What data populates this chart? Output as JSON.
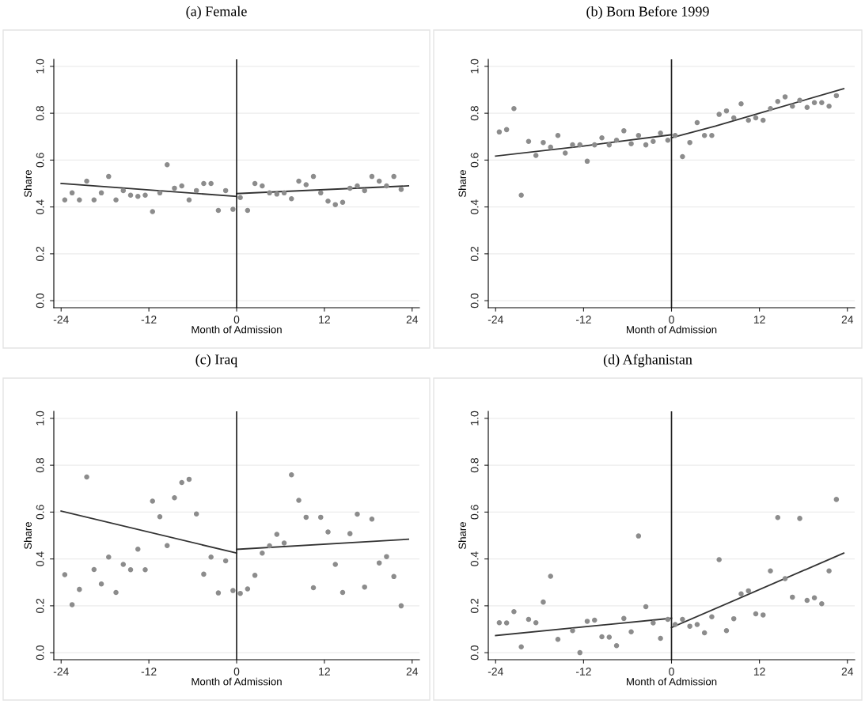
{
  "chart_data": [
    {
      "type": "scatter",
      "title": "(a) Female",
      "xlabel": "Month of Admission",
      "ylabel": "Share",
      "xlim": [
        -25,
        25
      ],
      "ylim": [
        -0.03,
        1.03
      ],
      "xticks": [
        -24,
        -12,
        0,
        12,
        24
      ],
      "yticks": [
        {
          "value": 0,
          "label": "0.0"
        },
        {
          "value": 0.2,
          "label": "0.2"
        },
        {
          "value": 0.4,
          "label": "0.4"
        },
        {
          "value": 0.6,
          "label": "0.6"
        },
        {
          "value": 0.8,
          "label": "0.8"
        },
        {
          "value": 1,
          "label": "1.0"
        }
      ],
      "grid": "y",
      "marker": "circle",
      "ref_lines": [
        {
          "axis": "x",
          "value": 0,
          "color": "#222222"
        }
      ],
      "x": [
        -23.5,
        -22.5,
        -21.5,
        -20.5,
        -19.5,
        -18.5,
        -17.5,
        -16.5,
        -15.5,
        -14.5,
        -13.5,
        -12.5,
        -11.5,
        -10.5,
        -9.5,
        -8.5,
        -7.5,
        -6.5,
        -5.5,
        -4.5,
        -3.5,
        -2.5,
        -1.5,
        -0.5,
        0.5,
        1.5,
        2.5,
        3.5,
        4.5,
        5.5,
        6.5,
        7.5,
        8.5,
        9.5,
        10.5,
        11.5,
        12.5,
        13.5,
        14.5,
        15.5,
        16.5,
        17.5,
        18.5,
        19.5,
        20.5,
        21.5,
        22.5
      ],
      "series": [
        {
          "color": "#8c8c8c",
          "values": [
            0.43,
            0.46,
            0.43,
            0.51,
            0.43,
            0.46,
            0.53,
            0.43,
            0.47,
            0.45,
            0.445,
            0.45,
            0.38,
            0.46,
            0.58,
            0.48,
            0.49,
            0.43,
            0.47,
            0.5,
            0.5,
            0.385,
            0.47,
            0.39,
            0.44,
            0.385,
            0.5,
            0.49,
            0.46,
            0.455,
            0.46,
            0.435,
            0.51,
            0.495,
            0.53,
            0.46,
            0.425,
            0.41,
            0.42,
            0.48,
            0.49,
            0.47,
            0.53,
            0.51,
            0.49,
            0.53,
            0.475
          ]
        },
        {
          "type": "line",
          "color": "#333333",
          "x": [
            -24,
            0
          ],
          "values": [
            0.5,
            0.445
          ],
          "marker": "none"
        },
        {
          "type": "line",
          "color": "#333333",
          "x": [
            0,
            23.5
          ],
          "values": [
            0.457,
            0.49
          ],
          "marker": "none"
        }
      ]
    },
    {
      "type": "scatter",
      "title": "(b) Born Before 1999",
      "xlabel": "Month of Admission",
      "ylabel": "Share",
      "xlim": [
        -25,
        25
      ],
      "ylim": [
        -0.03,
        1.03
      ],
      "xticks": [
        -24,
        -12,
        0,
        12,
        24
      ],
      "yticks": [
        {
          "value": 0,
          "label": "0.0"
        },
        {
          "value": 0.2,
          "label": "0.2"
        },
        {
          "value": 0.4,
          "label": "0.4"
        },
        {
          "value": 0.6,
          "label": "0.6"
        },
        {
          "value": 0.8,
          "label": "0.8"
        },
        {
          "value": 1,
          "label": "1.0"
        }
      ],
      "grid": "y",
      "marker": "circle",
      "ref_lines": [
        {
          "axis": "x",
          "value": 0,
          "color": "#222222"
        }
      ],
      "x": [
        -23.5,
        -22.5,
        -21.5,
        -20.5,
        -19.5,
        -18.5,
        -17.5,
        -16.5,
        -15.5,
        -14.5,
        -13.5,
        -12.5,
        -11.5,
        -10.5,
        -9.5,
        -8.5,
        -7.5,
        -6.5,
        -5.5,
        -4.5,
        -3.5,
        -2.5,
        -1.5,
        -0.5,
        0.5,
        1.5,
        2.5,
        3.5,
        4.5,
        5.5,
        6.5,
        7.5,
        8.5,
        9.5,
        10.5,
        11.5,
        12.5,
        13.5,
        14.5,
        15.5,
        16.5,
        17.5,
        18.5,
        19.5,
        20.5,
        21.5,
        22.5
      ],
      "series": [
        {
          "color": "#8c8c8c",
          "values": [
            0.72,
            0.73,
            0.82,
            0.45,
            0.68,
            0.62,
            0.675,
            0.655,
            0.705,
            0.63,
            0.665,
            0.665,
            0.595,
            0.665,
            0.695,
            0.665,
            0.685,
            0.725,
            0.67,
            0.705,
            0.665,
            0.68,
            0.715,
            0.685,
            0.705,
            0.615,
            0.675,
            0.76,
            0.705,
            0.705,
            0.795,
            0.81,
            0.78,
            0.84,
            0.77,
            0.78,
            0.77,
            0.82,
            0.85,
            0.87,
            0.83,
            0.855,
            0.825,
            0.845,
            0.845,
            0.83,
            0.875
          ]
        },
        {
          "type": "line",
          "color": "#333333",
          "x": [
            -24,
            -12,
            0
          ],
          "values": [
            0.617,
            0.66,
            0.708
          ],
          "marker": "none"
        },
        {
          "type": "line",
          "color": "#333333",
          "x": [
            0,
            6,
            12,
            23.5
          ],
          "values": [
            0.695,
            0.745,
            0.8,
            0.905
          ],
          "marker": "none"
        }
      ]
    },
    {
      "type": "scatter",
      "title": "(c) Iraq",
      "xlabel": "Month of Admission",
      "ylabel": "Share",
      "xlim": [
        -25,
        25
      ],
      "ylim": [
        -0.03,
        1.03
      ],
      "xticks": [
        -24,
        -12,
        0,
        12,
        24
      ],
      "yticks": [
        {
          "value": 0,
          "label": "0.0"
        },
        {
          "value": 0.2,
          "label": "0.2"
        },
        {
          "value": 0.4,
          "label": "0.4"
        },
        {
          "value": 0.6,
          "label": "0.6"
        },
        {
          "value": 0.8,
          "label": "0.8"
        },
        {
          "value": 1,
          "label": "1.0"
        }
      ],
      "grid": "y",
      "marker": "circle",
      "ref_lines": [
        {
          "axis": "x",
          "value": 0,
          "color": "#222222"
        }
      ],
      "x": [
        -23.5,
        -22.5,
        -21.5,
        -20.5,
        -19.5,
        -18.5,
        -17.5,
        -16.5,
        -15.5,
        -14.5,
        -13.5,
        -12.5,
        -11.5,
        -10.5,
        -9.5,
        -8.5,
        -7.5,
        -6.5,
        -5.5,
        -4.5,
        -3.5,
        -2.5,
        -1.5,
        -0.5,
        0.5,
        1.5,
        2.5,
        3.5,
        4.5,
        5.5,
        6.5,
        7.5,
        8.5,
        9.5,
        10.5,
        11.5,
        12.5,
        13.5,
        14.5,
        15.5,
        16.5,
        17.5,
        18.5,
        19.5,
        20.5,
        21.5,
        22.5
      ],
      "series": [
        {
          "color": "#8c8c8c",
          "values": [
            0.333,
            0.205,
            0.27,
            0.75,
            0.355,
            0.293,
            0.408,
            0.257,
            0.377,
            0.354,
            0.442,
            0.354,
            0.647,
            0.58,
            0.457,
            0.661,
            0.726,
            0.74,
            0.592,
            0.335,
            0.408,
            0.255,
            0.392,
            0.265,
            0.253,
            0.272,
            0.33,
            0.425,
            0.456,
            0.505,
            0.468,
            0.759,
            0.65,
            0.578,
            0.277,
            0.578,
            0.515,
            0.377,
            0.257,
            0.508,
            0.591,
            0.28,
            0.57,
            0.383,
            0.41,
            0.325,
            0.2
          ]
        },
        {
          "type": "line",
          "color": "#333333",
          "x": [
            -24,
            0
          ],
          "values": [
            0.604,
            0.425
          ],
          "marker": "none"
        },
        {
          "type": "line",
          "color": "#333333",
          "x": [
            0,
            23.5
          ],
          "values": [
            0.441,
            0.484
          ],
          "marker": "none"
        }
      ]
    },
    {
      "type": "scatter",
      "title": "(d) Afghanistan",
      "xlabel": "Month of Admission",
      "ylabel": "Share",
      "xlim": [
        -25,
        25
      ],
      "ylim": [
        -0.03,
        1.03
      ],
      "xticks": [
        -24,
        -12,
        0,
        12,
        24
      ],
      "yticks": [
        {
          "value": 0,
          "label": "0.0"
        },
        {
          "value": 0.2,
          "label": "0.2"
        },
        {
          "value": 0.4,
          "label": "0.4"
        },
        {
          "value": 0.6,
          "label": "0.6"
        },
        {
          "value": 0.8,
          "label": "0.8"
        },
        {
          "value": 1,
          "label": "1.0"
        }
      ],
      "grid": "y",
      "marker": "circle",
      "ref_lines": [
        {
          "axis": "x",
          "value": 0,
          "color": "#222222"
        }
      ],
      "x": [
        -23.5,
        -22.5,
        -21.5,
        -20.5,
        -19.5,
        -18.5,
        -17.5,
        -16.5,
        -15.5,
        -14.5,
        -13.5,
        -12.5,
        -11.5,
        -10.5,
        -9.5,
        -8.5,
        -7.5,
        -6.5,
        -5.5,
        -4.5,
        -3.5,
        -2.5,
        -1.5,
        -0.5,
        0.5,
        1.5,
        2.5,
        3.5,
        4.5,
        5.5,
        6.5,
        7.5,
        8.5,
        9.5,
        10.5,
        11.5,
        12.5,
        13.5,
        14.5,
        15.5,
        16.5,
        17.5,
        18.5,
        19.5,
        20.5,
        21.5,
        22.5
      ],
      "series": [
        {
          "color": "#8c8c8c",
          "values": [
            0.128,
            0.127,
            0.175,
            0.025,
            0.142,
            0.128,
            0.216,
            0.326,
            0.057,
            null,
            0.094,
            0.0,
            0.134,
            0.139,
            0.068,
            0.066,
            0.03,
            0.146,
            0.089,
            0.498,
            0.196,
            0.127,
            0.061,
            0.142,
            0.12,
            0.142,
            0.113,
            0.12,
            0.085,
            0.153,
            0.397,
            0.094,
            0.145,
            0.251,
            0.264,
            0.166,
            0.161,
            0.349,
            0.577,
            0.316,
            0.237,
            0.573,
            0.223,
            0.234,
            0.209,
            0.349,
            0.654
          ]
        },
        {
          "type": "line",
          "color": "#333333",
          "x": [
            -24,
            0
          ],
          "values": [
            0.073,
            0.147
          ],
          "marker": "none"
        },
        {
          "type": "line",
          "color": "#333333",
          "x": [
            0,
            23.5
          ],
          "values": [
            0.107,
            0.425
          ],
          "marker": "none"
        }
      ]
    }
  ]
}
